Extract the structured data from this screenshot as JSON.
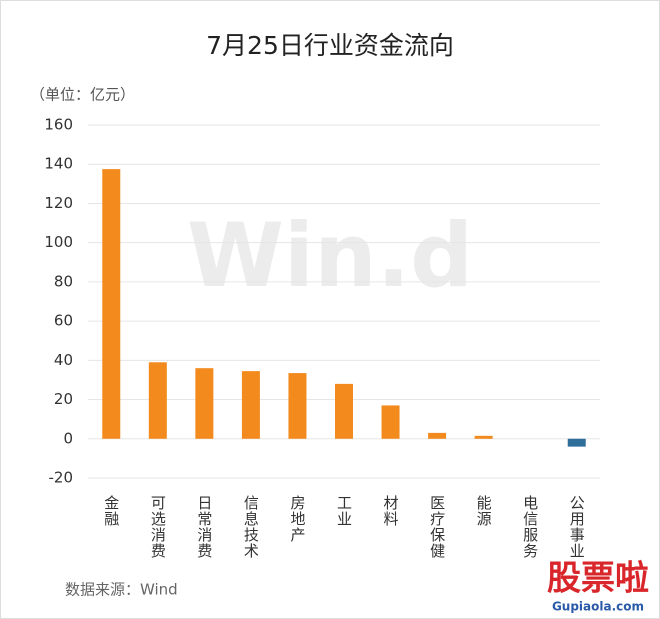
{
  "chart_data": {
    "type": "bar",
    "title": "7月25日行业资金流向",
    "unit_label": "（单位：亿元）",
    "categories": [
      "金融",
      "可选消费",
      "日常消费",
      "信息技术",
      "房地产",
      "工业",
      "材料",
      "医疗保健",
      "能源",
      "电信服务",
      "公用事业"
    ],
    "values": [
      137.5,
      39,
      36,
      34.5,
      33.5,
      28,
      17,
      3,
      1.5,
      0,
      -4
    ],
    "color": "#f28a1e",
    "negative_color": "#2e6e99",
    "ylim": [
      -20,
      160
    ],
    "yticks": [
      -20,
      0,
      20,
      40,
      60,
      80,
      100,
      120,
      140,
      160
    ],
    "grid": true,
    "source": "数据来源：Wind"
  },
  "watermark": "Win.d",
  "logo_text": "股票啦",
  "logo_url": "Gupiaola.com"
}
